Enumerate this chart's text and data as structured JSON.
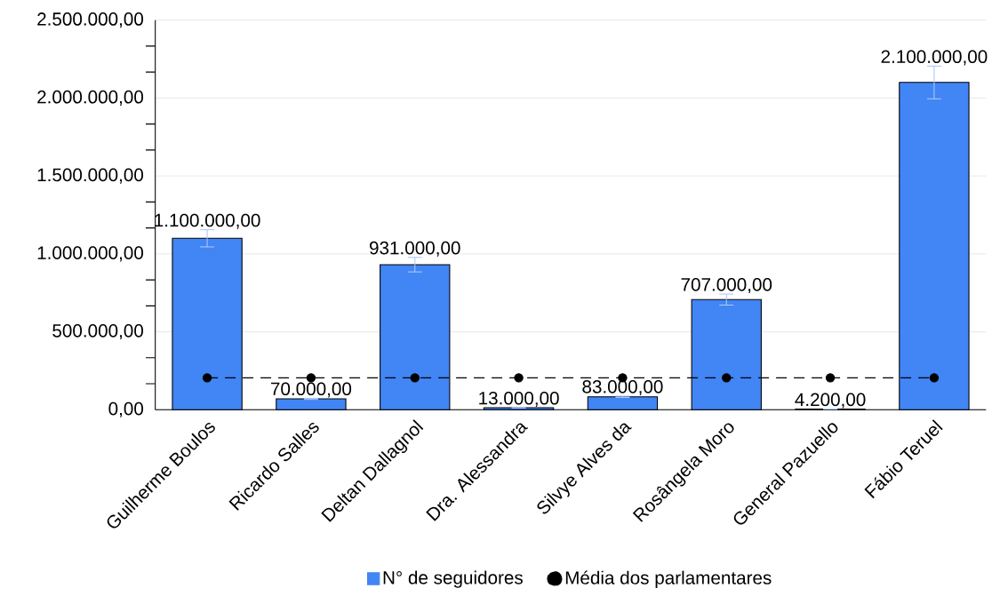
{
  "chart_data": {
    "type": "bar",
    "categories": [
      "Guilherme Boulos",
      "Ricardo Salles",
      "Deltan Dallagnol",
      "Dra. Alessandra",
      "Silvye Alves da",
      "Rosângela Moro",
      "General Pazuello",
      "Fábio Teruel"
    ],
    "series": [
      {
        "name": "N° de seguidores",
        "type": "bar",
        "color": "#4285f4",
        "values": [
          1100000,
          70000,
          931000,
          13000,
          83000,
          707000,
          4200,
          2100000
        ],
        "errors": [
          55000,
          3500,
          46550,
          650,
          4150,
          35350,
          210,
          105000
        ],
        "value_labels": [
          "1.100.000,00",
          "70.000,00",
          "931.000,00",
          "13.000,00",
          "83.000,00",
          "707.000,00",
          "4.200,00",
          "2.100.000,00"
        ]
      },
      {
        "name": "Média dos parlamentares",
        "type": "line",
        "color": "#000000",
        "marker": "circle",
        "line_style": "dashed",
        "values": [
          205000,
          205000,
          205000,
          205000,
          205000,
          205000,
          205000,
          205000
        ]
      }
    ],
    "ylim": [
      0,
      2500000
    ],
    "yticks": [
      {
        "value": 0,
        "label": "0,00"
      },
      {
        "value": 500000,
        "label": "500.000,00"
      },
      {
        "value": 1000000,
        "label": "1.000.000,00"
      },
      {
        "value": 1500000,
        "label": "1.500.000,00"
      },
      {
        "value": 2000000,
        "label": "2.000.000,00"
      },
      {
        "value": 2500000,
        "label": "2.500.000,00"
      }
    ],
    "grid": "y",
    "legend": "bottom"
  }
}
